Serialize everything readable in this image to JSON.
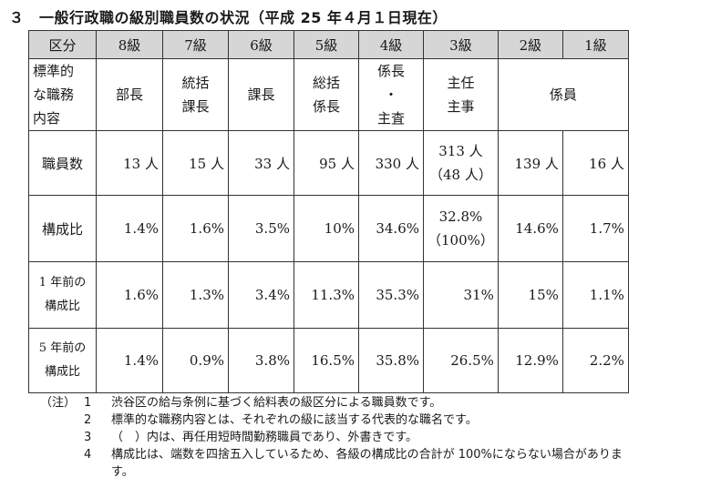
{
  "title": "３　一般行政職の級別職員数の状況（平成 25 年４月１日現在）",
  "table": {
    "headers": [
      "区分",
      "8級",
      "7級",
      "6級",
      "5級",
      "4級",
      "3級",
      "2級",
      "1級"
    ],
    "duties": {
      "label_lines": [
        "標準的",
        "な職務",
        "内容"
      ],
      "g8": [
        "部長"
      ],
      "g7": [
        "統括",
        "課長"
      ],
      "g6": [
        "課長"
      ],
      "g5": [
        "総括",
        "係長"
      ],
      "g4": [
        "係長",
        "・",
        "主査"
      ],
      "g3": [
        "主任",
        "主事"
      ],
      "g2_1": [
        "係員"
      ]
    },
    "count": {
      "label": "職員数",
      "values": [
        "13 人",
        "15 人",
        "33 人",
        "95 人",
        "330 人",
        "313 人",
        "139 人",
        "16 人"
      ],
      "g3_extra": "（48 人）"
    },
    "ratio": {
      "label": "構成比",
      "values": [
        "1.4%",
        "1.6%",
        "3.5%",
        "10%",
        "34.6%",
        "32.8%",
        "14.6%",
        "1.7%"
      ],
      "g3_extra": "（100%）"
    },
    "prev1": {
      "label_lines": [
        "1 年前の",
        "構成比"
      ],
      "values": [
        "1.6%",
        "1.3%",
        "3.4%",
        "11.3%",
        "35.3%",
        "31%",
        "15%",
        "1.1%"
      ]
    },
    "prev5": {
      "label_lines": [
        "5 年前の",
        "構成比"
      ],
      "values": [
        "1.4%",
        "0.9%",
        "3.8%",
        "16.5%",
        "35.8%",
        "26.5%",
        "12.9%",
        "2.2%"
      ]
    }
  },
  "notes": {
    "label": "（注）",
    "items": [
      {
        "n": "1",
        "text": "渋谷区の給与条例に基づく給料表の級区分による職員数です。"
      },
      {
        "n": "2",
        "text": "標準的な職務内容とは、それぞれの級に該当する代表的な職名です。"
      },
      {
        "n": "3",
        "text": "（　）内は、再任用短時間勤務職員であり、外書きです。"
      },
      {
        "n": "4",
        "text": "構成比は、端数を四捨五入しているため、各級の構成比の合計が 100%にならない場合がありま"
      }
    ],
    "continuation": "す。"
  }
}
